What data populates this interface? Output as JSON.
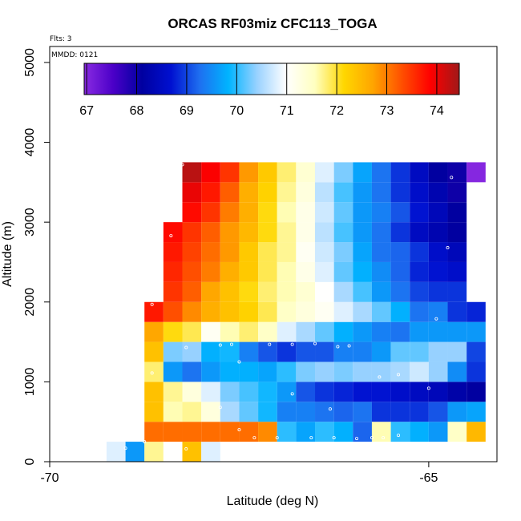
{
  "title": "ORCAS RF03miz CFC113_TOGA",
  "flights_note": "Flts: 3",
  "date_note": "MMDD: 0121",
  "xlabel": "Latitude (deg N)",
  "ylabel": "Altitude (m)",
  "colorbar": {
    "ticks": [
      "67",
      "68",
      "69",
      "70",
      "71",
      "72",
      "73",
      "74"
    ],
    "tick_values": [
      67,
      68,
      69,
      70,
      71,
      72,
      73,
      74
    ],
    "range": [
      66.95,
      74.45
    ],
    "stops": [
      "#8a2be2",
      "#4b00c8",
      "#0000a0",
      "#0010d0",
      "#1e6ff0",
      "#00b4ff",
      "#9ad2ff",
      "#ffffff",
      "#ffffc0",
      "#ffd700",
      "#ffa500",
      "#ff5000",
      "#ff0000",
      "#a01818"
    ]
  },
  "chart_data": {
    "type": "heatmap",
    "title": "ORCAS RF03miz CFC113_TOGA",
    "xlabel": "Latitude (deg N)",
    "ylabel": "Altitude (m)",
    "xlim": [
      -70,
      -64.1
    ],
    "ylim": [
      0,
      5200
    ],
    "x_ticks": [
      -70,
      -65
    ],
    "x_tick_labels": [
      "-70",
      "-65"
    ],
    "y_ticks": [
      0,
      1000,
      2000,
      3000,
      4000,
      5000
    ],
    "y_tick_labels": [
      "0",
      "1000",
      "2000",
      "3000",
      "4000",
      "5000"
    ],
    "grid": false,
    "colorbar_label_units": "CFC113_TOGA",
    "x_start": -69.25,
    "x_step": 0.25,
    "y_start": 0,
    "y_step": 250,
    "rows": [
      {
        "y": 0,
        "x0": -69.25,
        "values": [
          70.8,
          69.6,
          71.7,
          71.0,
          72.4,
          70.8
        ]
      },
      {
        "y": 250,
        "x0": -68.75,
        "values": [
          73.1,
          73.1,
          73.1,
          73.1,
          73.1,
          73.1,
          72.9,
          70.0,
          69.7,
          70.0,
          69.8,
          69.2,
          71.6,
          70.0,
          69.8,
          69.6,
          71.5,
          72.5
        ]
      },
      {
        "y": 500,
        "x0": -68.75,
        "values": [
          72.4,
          71.6,
          71.7,
          71.3,
          70.5,
          70.2,
          69.9,
          69.4,
          69.4,
          69.3,
          69.2,
          69.3,
          68.9,
          68.9,
          68.9,
          69.1,
          69.6,
          69.7
        ]
      },
      {
        "y": 750,
        "x0": -68.75,
        "values": [
          72.4,
          71.7,
          71.3,
          70.8,
          70.3,
          70.1,
          69.9,
          69.6,
          69.1,
          68.9,
          68.8,
          68.7,
          68.7,
          68.6,
          68.5,
          68.4,
          68.2,
          68.1
        ]
      },
      {
        "y": 1000,
        "x0": -68.75,
        "values": [
          71.8,
          69.6,
          69.3,
          69.6,
          69.8,
          69.8,
          69.7,
          70.0,
          70.3,
          70.4,
          70.3,
          70.4,
          70.4,
          70.5,
          70.7,
          70.4,
          69.5,
          68.9
        ]
      },
      {
        "y": 1250,
        "x0": -68.75,
        "values": [
          72.4,
          70.3,
          70.4,
          69.8,
          69.9,
          69.4,
          69.1,
          68.9,
          69.1,
          69.1,
          69.4,
          69.4,
          69.6,
          70.2,
          70.2,
          70.4,
          70.4,
          69.0
        ]
      },
      {
        "y": 1500,
        "x0": -68.75,
        "values": [
          72.7,
          72.1,
          71.9,
          71.1,
          71.6,
          71.8,
          71.5,
          70.8,
          70.5,
          70.2,
          69.8,
          69.6,
          69.4,
          69.3,
          69.6,
          69.6,
          69.6,
          69.6
        ]
      },
      {
        "y": 1750,
        "x0": -68.75,
        "values": [
          73.7,
          73.3,
          72.9,
          72.6,
          72.4,
          72.2,
          71.9,
          71.5,
          71.3,
          71.1,
          70.8,
          70.5,
          70.2,
          69.8,
          69.3,
          69.4,
          68.9,
          68.8
        ]
      },
      {
        "y": 2000,
        "x0": -68.5,
        "values": [
          73.5,
          73.2,
          72.7,
          72.4,
          72.1,
          71.8,
          71.6,
          71.4,
          71.0,
          70.5,
          70.1,
          69.6,
          69.3,
          69.0,
          68.9,
          68.9
        ]
      },
      {
        "y": 2250,
        "x0": -68.5,
        "values": [
          73.6,
          73.3,
          73.0,
          72.6,
          72.3,
          71.9,
          71.6,
          71.2,
          70.8,
          70.2,
          69.8,
          69.5,
          69.2,
          68.8,
          68.7,
          68.6
        ]
      },
      {
        "y": 2500,
        "x0": -68.5,
        "values": [
          73.7,
          73.4,
          73.1,
          72.8,
          72.3,
          71.9,
          71.7,
          71.1,
          70.7,
          70.3,
          69.7,
          69.3,
          69.2,
          68.9,
          68.6,
          68.4
        ]
      },
      {
        "y": 2750,
        "x0": -68.5,
        "values": [
          73.8,
          73.5,
          73.2,
          72.8,
          72.5,
          72.1,
          71.7,
          71.2,
          70.6,
          70.1,
          69.6,
          69.3,
          68.9,
          68.5,
          68.3,
          68.1
        ]
      },
      {
        "y": 3000,
        "x0": -68.25,
        "values": [
          73.8,
          73.5,
          73.0,
          72.6,
          72.1,
          71.6,
          71.2,
          70.7,
          70.2,
          69.6,
          69.4,
          69.1,
          68.7,
          68.4,
          68.1
        ]
      },
      {
        "y": 3250,
        "x0": -68.25,
        "values": [
          74.0,
          73.7,
          73.2,
          72.6,
          72.2,
          71.7,
          71.3,
          70.6,
          70.1,
          69.6,
          69.3,
          68.9,
          68.6,
          68.3,
          68.0
        ]
      },
      {
        "y": 3500,
        "x0": -68.25,
        "values": [
          74.3,
          73.9,
          73.5,
          72.8,
          72.3,
          71.8,
          71.4,
          70.8,
          70.3,
          69.7,
          69.3,
          68.9,
          68.5,
          68.1,
          68.0,
          67.0
        ]
      }
    ],
    "sample_points": [
      {
        "x": -68.25,
        "y": 3720
      },
      {
        "x": -64.7,
        "y": 3560
      },
      {
        "x": -68.4,
        "y": 2830
      },
      {
        "x": -64.75,
        "y": 2680
      },
      {
        "x": -68.65,
        "y": 1970
      },
      {
        "x": -64.9,
        "y": 1790
      },
      {
        "x": -68.2,
        "y": 1430
      },
      {
        "x": -67.75,
        "y": 1460
      },
      {
        "x": -67.6,
        "y": 1470
      },
      {
        "x": -67.5,
        "y": 1250
      },
      {
        "x": -67.1,
        "y": 1470
      },
      {
        "x": -66.8,
        "y": 1470
      },
      {
        "x": -66.5,
        "y": 1480
      },
      {
        "x": -66.2,
        "y": 1440
      },
      {
        "x": -66.05,
        "y": 1450
      },
      {
        "x": -68.95,
        "y": 1080
      },
      {
        "x": -68.65,
        "y": 1110
      },
      {
        "x": -65.65,
        "y": 1060
      },
      {
        "x": -65.4,
        "y": 1090
      },
      {
        "x": -65.0,
        "y": 920
      },
      {
        "x": -66.8,
        "y": 850
      },
      {
        "x": -66.3,
        "y": 660
      },
      {
        "x": -67.75,
        "y": 680
      },
      {
        "x": -68.9,
        "y": 390
      },
      {
        "x": -69.0,
        "y": 170
      },
      {
        "x": -68.75,
        "y": 250
      },
      {
        "x": -68.2,
        "y": 160
      },
      {
        "x": -67.5,
        "y": 400
      },
      {
        "x": -67.3,
        "y": 300
      },
      {
        "x": -67.0,
        "y": 300
      },
      {
        "x": -66.55,
        "y": 300
      },
      {
        "x": -66.25,
        "y": 300
      },
      {
        "x": -65.75,
        "y": 300
      },
      {
        "x": -65.6,
        "y": 300
      },
      {
        "x": -65.4,
        "y": 330
      },
      {
        "x": -65.95,
        "y": 290
      }
    ]
  }
}
